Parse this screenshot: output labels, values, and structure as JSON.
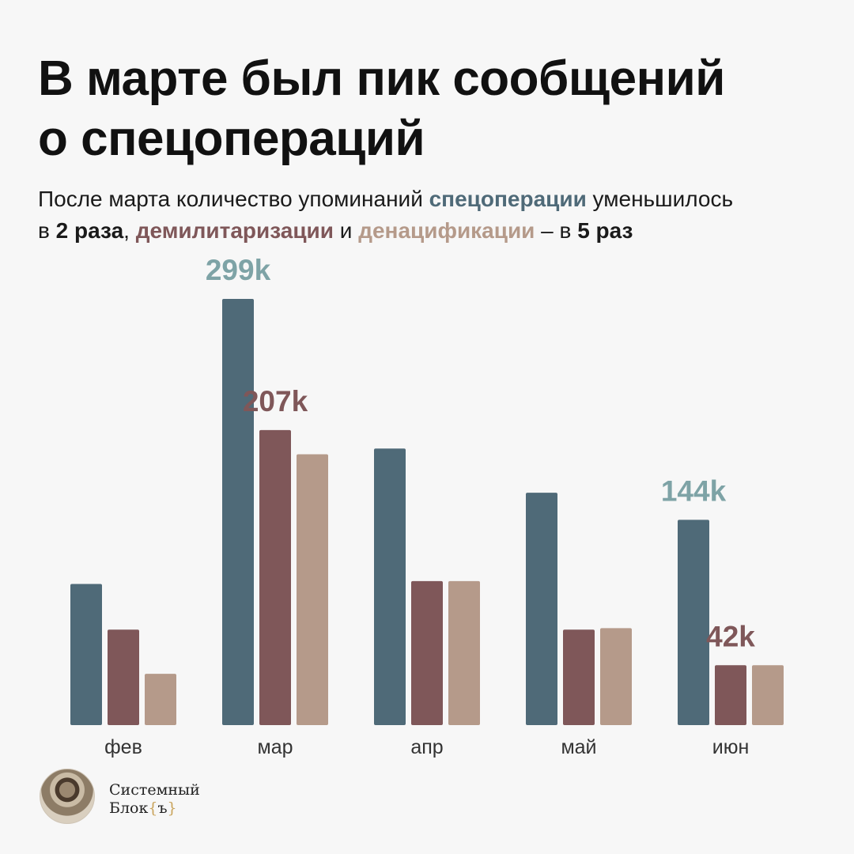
{
  "title": {
    "line1": "В марте был пик сообщений",
    "line2": "о спецопераций"
  },
  "subtitle": {
    "part1": "После марта количество упоминаний ",
    "term1": "спецоперации",
    "part2": " уменьшилось",
    "part3": "в ",
    "times1": "2 раза",
    "part4": ", ",
    "term2": "демилитаризации",
    "part5": " и ",
    "term3": "денацификации",
    "part6": " – в ",
    "times2": "5 раз"
  },
  "chart_data": {
    "type": "bar",
    "categories": [
      "фев",
      "мар",
      "апр",
      "май",
      "июн"
    ],
    "series": [
      {
        "color": "#4f6a78",
        "values": [
          99,
          299,
          194,
          163,
          144
        ]
      },
      {
        "color": "#7f5759",
        "values": [
          67,
          207,
          101,
          67,
          42
        ]
      },
      {
        "color": "#b59a8a",
        "values": [
          36,
          190,
          101,
          68,
          42
        ]
      }
    ],
    "ylim": [
      0,
      299
    ],
    "data_labels": [
      {
        "text": "299k",
        "series": 0,
        "category": 1,
        "color": "#7ea3a6"
      },
      {
        "text": "207k",
        "series": 1,
        "category": 1,
        "color": "#7f5759"
      },
      {
        "text": "144k",
        "series": 0,
        "category": 4,
        "color": "#7ea3a6"
      },
      {
        "text": "42k",
        "series": 1,
        "category": 4,
        "color": "#7f5759"
      }
    ],
    "grid": false,
    "legend": "none"
  },
  "brand": {
    "line1": "Системный",
    "line2_text": "Блок",
    "brace_open": "{",
    "brace_char": "ъ",
    "brace_close": "}"
  }
}
